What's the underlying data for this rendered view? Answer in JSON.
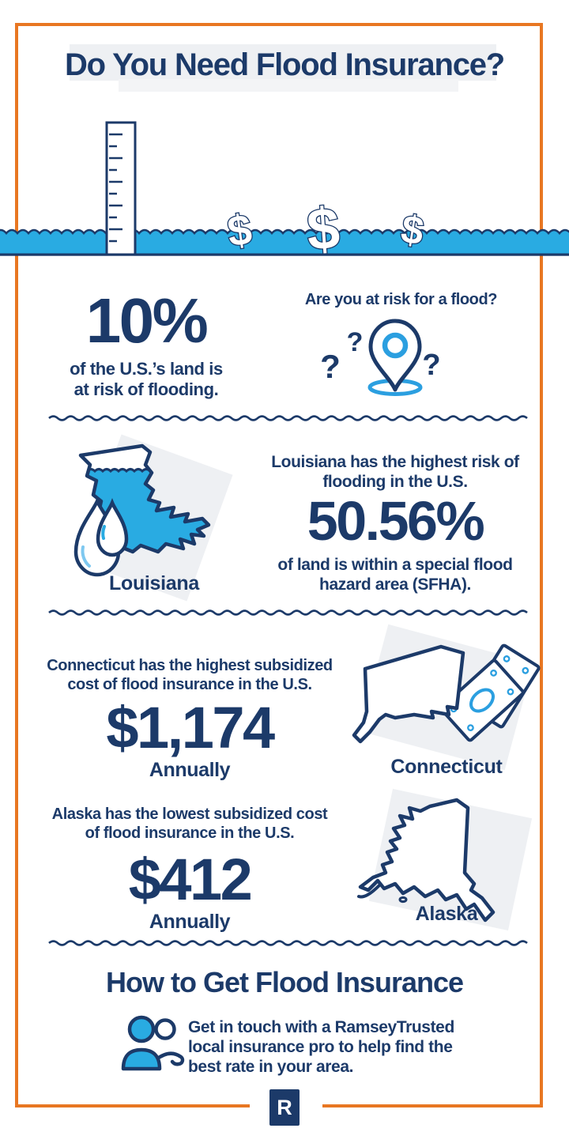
{
  "title": "Do You Need Flood Insurance?",
  "glyphs": {
    "dollar": "$",
    "question_mark": "?"
  },
  "colors": {
    "navy": "#1c3a69",
    "water_blue": "#29abe2",
    "accent_blue": "#2b9fe0",
    "light_blue": "#7ec8f0",
    "orange_border": "#e87722",
    "wash_gray": "#eef0f3"
  },
  "risk_section": {
    "stat": "10%",
    "caption_lines": [
      "of the U.S.’s land is",
      "at risk of flooding."
    ],
    "question": "Are you at risk for a flood?"
  },
  "louisiana_section": {
    "heading_lines": [
      "Louisiana has the highest risk of",
      "flooding in the U.S."
    ],
    "stat": "50.56%",
    "caption_lines": [
      "of land is within a special flood",
      "hazard area (SFHA)."
    ],
    "state_label": "Louisiana"
  },
  "connecticut_section": {
    "heading_lines": [
      "Connecticut has the highest subsidized",
      "cost of flood insurance in the U.S."
    ],
    "stat": "$1,174",
    "caption": "Annually",
    "state_label": "Connecticut"
  },
  "alaska_section": {
    "heading_lines": [
      "Alaska has the lowest subsidized cost",
      "of flood insurance in the U.S."
    ],
    "stat": "$412",
    "caption": "Annually",
    "state_label": "Alaska"
  },
  "cta_section": {
    "heading": "How to Get Flood Insurance",
    "body_lines": [
      "Get in touch with a RamseyTrusted",
      "local insurance pro to help find the",
      "best rate in your area."
    ]
  },
  "footer": {
    "logo_letter": "R"
  }
}
